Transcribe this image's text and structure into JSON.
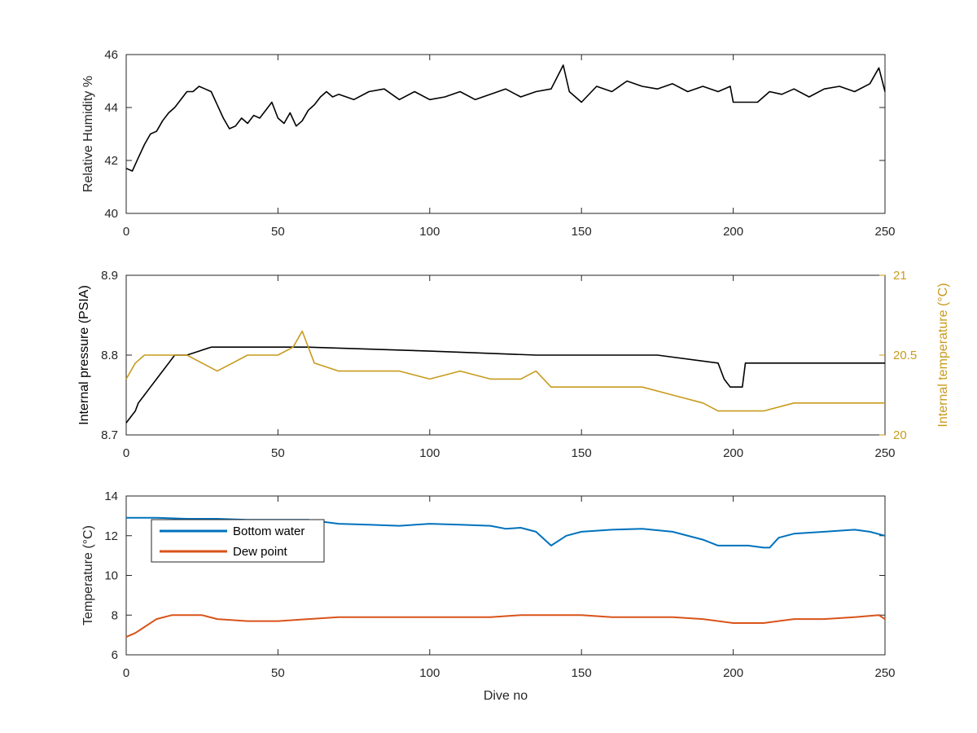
{
  "chart_data": [
    {
      "type": "line",
      "xlabel": "",
      "ylabel": "Relative Humidity %",
      "xlim": [
        0,
        250
      ],
      "ylim": [
        40,
        46
      ],
      "xticks": [
        0,
        50,
        100,
        150,
        200,
        250
      ],
      "yticks": [
        40,
        42,
        44,
        46
      ],
      "grid": false,
      "series": [
        {
          "color": "#000000",
          "x": [
            0,
            2,
            4,
            6,
            8,
            10,
            12,
            14,
            16,
            18,
            20,
            22,
            24,
            26,
            28,
            30,
            32,
            34,
            36,
            38,
            40,
            42,
            44,
            46,
            48,
            50,
            52,
            54,
            56,
            58,
            60,
            62,
            64,
            66,
            68,
            70,
            75,
            80,
            85,
            90,
            95,
            100,
            105,
            110,
            115,
            120,
            125,
            130,
            135,
            140,
            144,
            146,
            150,
            155,
            160,
            165,
            170,
            175,
            180,
            185,
            190,
            195,
            199,
            200,
            205,
            208,
            212,
            216,
            220,
            225,
            230,
            235,
            240,
            245,
            248,
            250
          ],
          "values": [
            41.7,
            41.6,
            42.1,
            42.6,
            43.0,
            43.1,
            43.5,
            43.8,
            44.0,
            44.3,
            44.6,
            44.6,
            44.8,
            44.7,
            44.6,
            44.1,
            43.6,
            43.2,
            43.3,
            43.6,
            43.4,
            43.7,
            43.6,
            43.9,
            44.2,
            43.6,
            43.4,
            43.8,
            43.3,
            43.5,
            43.9,
            44.1,
            44.4,
            44.6,
            44.4,
            44.5,
            44.3,
            44.6,
            44.7,
            44.3,
            44.6,
            44.3,
            44.4,
            44.6,
            44.3,
            44.5,
            44.7,
            44.4,
            44.6,
            44.7,
            45.6,
            44.6,
            44.2,
            44.8,
            44.6,
            45.0,
            44.8,
            44.7,
            44.9,
            44.6,
            44.8,
            44.6,
            44.8,
            44.2,
            44.2,
            44.2,
            44.6,
            44.5,
            44.7,
            44.4,
            44.7,
            44.8,
            44.6,
            44.9,
            45.5,
            44.6
          ]
        }
      ]
    },
    {
      "type": "line",
      "xlabel": "",
      "ylabel": "Internal pressure (PSIA)",
      "ylabel_right": "Internal temperature (°C)",
      "xlim": [
        0,
        250
      ],
      "ylim": [
        8.7,
        8.9
      ],
      "ylim_right": [
        20,
        21
      ],
      "xticks": [
        0,
        50,
        100,
        150,
        200,
        250
      ],
      "yticks": [
        8.7,
        8.8,
        8.9
      ],
      "yticks_right": [
        20,
        20.5,
        21
      ],
      "grid": false,
      "series": [
        {
          "axis": "left",
          "color": "#000000",
          "x": [
            0,
            1,
            3,
            4,
            6,
            8,
            10,
            12,
            14,
            16,
            18,
            20,
            24,
            28,
            40,
            60,
            100,
            135,
            140,
            170,
            175,
            195,
            197,
            199,
            200,
            203,
            204,
            210,
            250
          ],
          "values": [
            8.715,
            8.72,
            8.73,
            8.74,
            8.75,
            8.76,
            8.77,
            8.78,
            8.79,
            8.8,
            8.8,
            8.8,
            8.805,
            8.81,
            8.81,
            8.81,
            8.805,
            8.8,
            8.8,
            8.8,
            8.8,
            8.79,
            8.77,
            8.76,
            8.76,
            8.76,
            8.79,
            8.79,
            8.79
          ]
        },
        {
          "axis": "right",
          "color": "#C89B1C",
          "x": [
            0,
            3,
            6,
            10,
            15,
            20,
            25,
            30,
            35,
            40,
            50,
            55,
            58,
            62,
            70,
            80,
            90,
            100,
            110,
            120,
            130,
            135,
            140,
            150,
            160,
            170,
            180,
            190,
            195,
            200,
            205,
            210,
            220,
            230,
            240,
            250
          ],
          "values": [
            20.35,
            20.45,
            20.5,
            20.5,
            20.5,
            20.5,
            20.45,
            20.4,
            20.45,
            20.5,
            20.5,
            20.55,
            20.65,
            20.45,
            20.4,
            20.4,
            20.4,
            20.35,
            20.4,
            20.35,
            20.35,
            20.4,
            20.3,
            20.3,
            20.3,
            20.3,
            20.25,
            20.2,
            20.15,
            20.15,
            20.15,
            20.15,
            20.2,
            20.2,
            20.2,
            20.2
          ]
        }
      ]
    },
    {
      "type": "line",
      "xlabel": "Dive no",
      "ylabel": "Temperature (°C)",
      "xlim": [
        0,
        250
      ],
      "ylim": [
        6,
        14
      ],
      "xticks": [
        0,
        50,
        100,
        150,
        200,
        250
      ],
      "yticks": [
        6,
        8,
        10,
        12,
        14
      ],
      "grid": false,
      "legend_position": "top-left",
      "series": [
        {
          "name": "Bottom water",
          "color": "#0072BD",
          "x": [
            0,
            10,
            20,
            30,
            40,
            50,
            60,
            70,
            80,
            90,
            100,
            110,
            120,
            125,
            130,
            135,
            140,
            145,
            150,
            160,
            170,
            180,
            190,
            195,
            200,
            205,
            210,
            212,
            215,
            220,
            230,
            240,
            245,
            250
          ],
          "values": [
            12.9,
            12.9,
            12.85,
            12.85,
            12.8,
            12.8,
            12.8,
            12.6,
            12.55,
            12.5,
            12.6,
            12.55,
            12.5,
            12.35,
            12.4,
            12.2,
            11.5,
            12.0,
            12.2,
            12.3,
            12.35,
            12.2,
            11.8,
            11.5,
            11.5,
            11.5,
            11.4,
            11.4,
            11.9,
            12.1,
            12.2,
            12.3,
            12.2,
            12.0
          ]
        },
        {
          "name": "Dew point",
          "color": "#D95319",
          "x": [
            0,
            3,
            6,
            10,
            15,
            20,
            25,
            30,
            40,
            50,
            60,
            70,
            80,
            90,
            100,
            110,
            120,
            130,
            140,
            150,
            160,
            170,
            180,
            190,
            200,
            210,
            220,
            230,
            240,
            248,
            250
          ],
          "values": [
            6.9,
            7.1,
            7.4,
            7.8,
            8.0,
            8.0,
            8.0,
            7.8,
            7.7,
            7.7,
            7.8,
            7.9,
            7.9,
            7.9,
            7.9,
            7.9,
            7.9,
            8.0,
            8.0,
            8.0,
            7.9,
            7.9,
            7.9,
            7.8,
            7.6,
            7.6,
            7.8,
            7.8,
            7.9,
            8.0,
            7.8
          ]
        }
      ]
    }
  ]
}
